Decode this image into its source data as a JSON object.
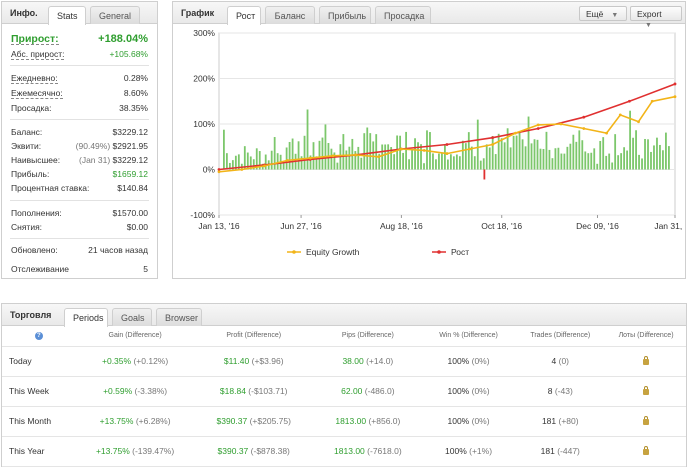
{
  "info": {
    "title": "Инфо.",
    "tabs": [
      "Stats",
      "General"
    ],
    "gain_label": "Прирост:",
    "gain_value": "+188.04%",
    "abs_gain_label": "Абс. прирост:",
    "abs_gain_value": "+105.68%",
    "daily_label": "Ежедневно:",
    "daily_value": "0.28%",
    "monthly_label": "Ежемесячно:",
    "monthly_value": "8.60%",
    "drawdown_label": "Просадка:",
    "drawdown_value": "38.35%",
    "balance_label": "Баланс:",
    "balance_value": "$3229.12",
    "equity_label": "Эквити:",
    "equity_pct": "(90.49%)",
    "equity_value": "$2921.95",
    "highest_label": "Наивысшее:",
    "highest_date": "(Jan 31)",
    "highest_value": "$3229.12",
    "profit_label": "Прибыль:",
    "profit_value": "$1659.12",
    "interest_label": "Процентная ставка:",
    "interest_value": "$140.84",
    "deposits_label": "Пополнения:",
    "deposits_value": "$1570.00",
    "withdrawals_label": "Снятия:",
    "withdrawals_value": "$0.00",
    "updated_label": "Обновлено:",
    "updated_value": "21 часов назад",
    "tracking_label": "Отслеживание",
    "tracking_value": "5"
  },
  "chart_panel": {
    "title": "График",
    "tabs": [
      "Рост",
      "Баланс",
      "Прибыль",
      "Просадка"
    ],
    "more_button": "Ещё",
    "export_button": "Export"
  },
  "chart_data": {
    "type": "line",
    "ylim": [
      -100,
      300
    ],
    "yticks": [
      "300%",
      "200%",
      "100%",
      "0%",
      "-100%"
    ],
    "xticks": [
      "Jan 13, '16",
      "Jun 27, '16",
      "Aug 18, '16",
      "Oct 18, '16",
      "Dec 09, '16",
      "Jan 31, '17"
    ],
    "legend": [
      "Equity Growth",
      "Рост"
    ],
    "series": [
      {
        "name": "Рост",
        "color": "#e03030",
        "points": [
          [
            0,
            0
          ],
          [
            10,
            10
          ],
          [
            20,
            22
          ],
          [
            30,
            32
          ],
          [
            40,
            45
          ],
          [
            50,
            55
          ],
          [
            60,
            70
          ],
          [
            70,
            90
          ],
          [
            80,
            115
          ],
          [
            90,
            150
          ],
          [
            100,
            188
          ]
        ]
      },
      {
        "name": "Equity Growth",
        "color": "#f2b418",
        "points": [
          [
            0,
            -5
          ],
          [
            5,
            0
          ],
          [
            10,
            8
          ],
          [
            15,
            20
          ],
          [
            20,
            25
          ],
          [
            25,
            30
          ],
          [
            30,
            32
          ],
          [
            35,
            28
          ],
          [
            40,
            45
          ],
          [
            45,
            42
          ],
          [
            50,
            35
          ],
          [
            55,
            45
          ],
          [
            60,
            55
          ],
          [
            65,
            80
          ],
          [
            70,
            98
          ],
          [
            75,
            100
          ],
          [
            80,
            90
          ],
          [
            85,
            80
          ],
          [
            88,
            120
          ],
          [
            92,
            105
          ],
          [
            95,
            150
          ],
          [
            100,
            160
          ]
        ]
      }
    ]
  },
  "trading": {
    "title": "Торговля",
    "tabs": [
      "Periods",
      "Goals",
      "Browser"
    ],
    "headers": [
      "Gain (Difference)",
      "Profit (Difference)",
      "Pips (Difference)",
      "Win % (Difference)",
      "Trades (Difference)",
      "Лоты (Difference)"
    ],
    "rows": [
      {
        "period": "Today",
        "gain": "+0.35%",
        "gain_diff": "(+0.12%)",
        "profit": "$11.40",
        "profit_diff": "(+$3.96)",
        "pips": "38.00",
        "pips_diff": "(+14.0)",
        "win": "100%",
        "win_diff": "(0%)",
        "trades": "4",
        "trades_diff": "(0)"
      },
      {
        "period": "This Week",
        "gain": "+0.59%",
        "gain_diff": "(-3.38%)",
        "profit": "$18.84",
        "profit_diff": "(-$103.71)",
        "pips": "62.00",
        "pips_diff": "(-486.0)",
        "win": "100%",
        "win_diff": "(0%)",
        "trades": "8",
        "trades_diff": "(-43)"
      },
      {
        "period": "This Month",
        "gain": "+13.75%",
        "gain_diff": "(+6.28%)",
        "profit": "$390.37",
        "profit_diff": "(+$205.75)",
        "pips": "1813.00",
        "pips_diff": "(+856.0)",
        "win": "100%",
        "win_diff": "(0%)",
        "trades": "181",
        "trades_diff": "(+80)"
      },
      {
        "period": "This Year",
        "gain": "+13.75%",
        "gain_diff": "(-139.47%)",
        "profit": "$390.37",
        "profit_diff": "(-$878.38)",
        "pips": "1813.00",
        "pips_diff": "(-7618.0)",
        "win": "100%",
        "win_diff": "(+1%)",
        "trades": "181",
        "trades_diff": "(-447)"
      }
    ]
  }
}
